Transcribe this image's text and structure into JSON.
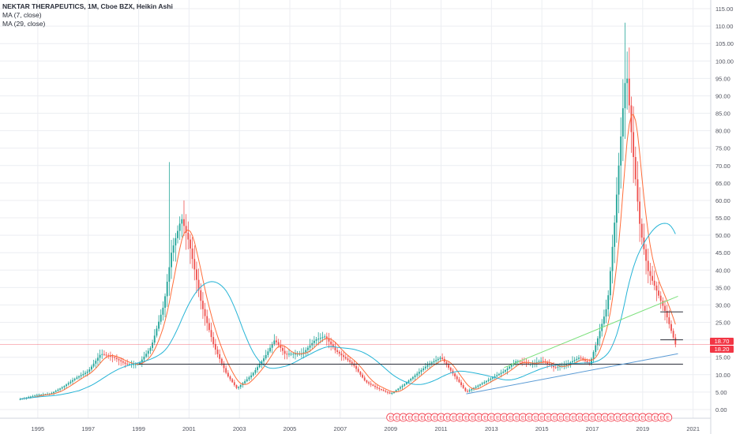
{
  "legend": {
    "symbol": "NEKTAR THERAPEUTICS, 1M, Cboe BZX, Heikin Ashi",
    "ma7": "MA (7, close)",
    "ma29": "MA (29, close)"
  },
  "price_labels": {
    "close": "18.70",
    "prev": "18.20"
  },
  "colors": {
    "up": "#26a69a",
    "down": "#ef5350",
    "ma7": "#ff6d3a",
    "ma29": "#26b4d6",
    "hline": "#2a2e39",
    "price_line": "#f23645",
    "trend_green": "#7be07b",
    "trend_blue": "#5b9bd5",
    "grid": "#eceef2",
    "earnings": "#f23645"
  },
  "chart_data": {
    "type": "candlestick",
    "title": "NEKTAR THERAPEUTICS, 1M, Cboe BZX, Heikin Ashi",
    "ylim": [
      -2.5,
      117.5
    ],
    "xlim": [
      1993.5,
      2021.7
    ],
    "y_ticks": [
      "0.00",
      "5.00",
      "10.00",
      "15.00",
      "20.00",
      "25.00",
      "30.00",
      "35.00",
      "40.00",
      "45.00",
      "50.00",
      "55.00",
      "60.00",
      "65.00",
      "70.00",
      "75.00",
      "80.00",
      "85.00",
      "90.00",
      "95.00",
      "100.00",
      "105.00",
      "110.00",
      "115.00"
    ],
    "x_ticks": [
      "1995",
      "1997",
      "1999",
      "2001",
      "2003",
      "2005",
      "2007",
      "2009",
      "2011",
      "2013",
      "2015",
      "2017",
      "2019",
      "2021"
    ],
    "price_anchors": [
      [
        1994.3,
        3.0
      ],
      [
        1995.0,
        4.2
      ],
      [
        1995.5,
        4.5
      ],
      [
        1996.0,
        6.5
      ],
      [
        1996.5,
        9.0
      ],
      [
        1997.0,
        11.0
      ],
      [
        1997.5,
        16.0
      ],
      [
        1998.0,
        15.0
      ],
      [
        1998.5,
        13.0
      ],
      [
        1999.0,
        13.0
      ],
      [
        1999.5,
        18.0
      ],
      [
        2000.0,
        30.0
      ],
      [
        2000.3,
        45.0
      ],
      [
        2000.7,
        55.0
      ],
      [
        2001.0,
        48.0
      ],
      [
        2001.5,
        30.0
      ],
      [
        2002.0,
        18.0
      ],
      [
        2002.5,
        10.0
      ],
      [
        2002.9,
        6.0
      ],
      [
        2003.5,
        10.0
      ],
      [
        2004.0,
        15.0
      ],
      [
        2004.4,
        20.0
      ],
      [
        2004.8,
        16.0
      ],
      [
        2005.5,
        16.0
      ],
      [
        2006.0,
        20.0
      ],
      [
        2006.4,
        21.0
      ],
      [
        2006.8,
        17.0
      ],
      [
        2007.5,
        13.0
      ],
      [
        2008.0,
        8.0
      ],
      [
        2008.5,
        6.0
      ],
      [
        2009.0,
        4.5
      ],
      [
        2009.5,
        7.0
      ],
      [
        2010.0,
        10.0
      ],
      [
        2010.5,
        13.0
      ],
      [
        2011.0,
        15.0
      ],
      [
        2011.5,
        10.0
      ],
      [
        2012.0,
        5.0
      ],
      [
        2012.5,
        7.0
      ],
      [
        2013.0,
        9.0
      ],
      [
        2013.5,
        11.0
      ],
      [
        2014.0,
        14.0
      ],
      [
        2014.5,
        13.0
      ],
      [
        2015.0,
        14.0
      ],
      [
        2015.5,
        12.0
      ],
      [
        2016.0,
        13.0
      ],
      [
        2016.5,
        15.0
      ],
      [
        2016.9,
        13.0
      ],
      [
        2017.2,
        20.0
      ],
      [
        2017.6,
        30.0
      ],
      [
        2017.9,
        55.0
      ],
      [
        2018.2,
        85.0
      ],
      [
        2018.35,
        98.0
      ],
      [
        2018.6,
        75.0
      ],
      [
        2018.9,
        52.0
      ],
      [
        2019.2,
        40.0
      ],
      [
        2019.5,
        35.0
      ],
      [
        2019.9,
        28.0
      ],
      [
        2020.3,
        18.7
      ]
    ],
    "spikes": [
      [
        2000.2,
        71.0
      ],
      [
        2000.8,
        60.0
      ],
      [
        2018.3,
        111.0
      ]
    ],
    "ma_periods": [
      7,
      29
    ],
    "horizontal_levels": [
      13.0,
      28.0,
      20.0
    ],
    "current_price": 18.7,
    "prev_price": 18.2,
    "trendlines": [
      {
        "from": [
          2012.0,
          4.5
        ],
        "to": [
          2020.4,
          16.0
        ],
        "color": "blue"
      },
      {
        "from": [
          2013.5,
          12.0
        ],
        "to": [
          2020.4,
          32.5
        ],
        "color": "green"
      }
    ],
    "earnings_markers_start": 2009.0,
    "earnings_markers_end": 2020.0,
    "earnings_marker_label": "E"
  }
}
